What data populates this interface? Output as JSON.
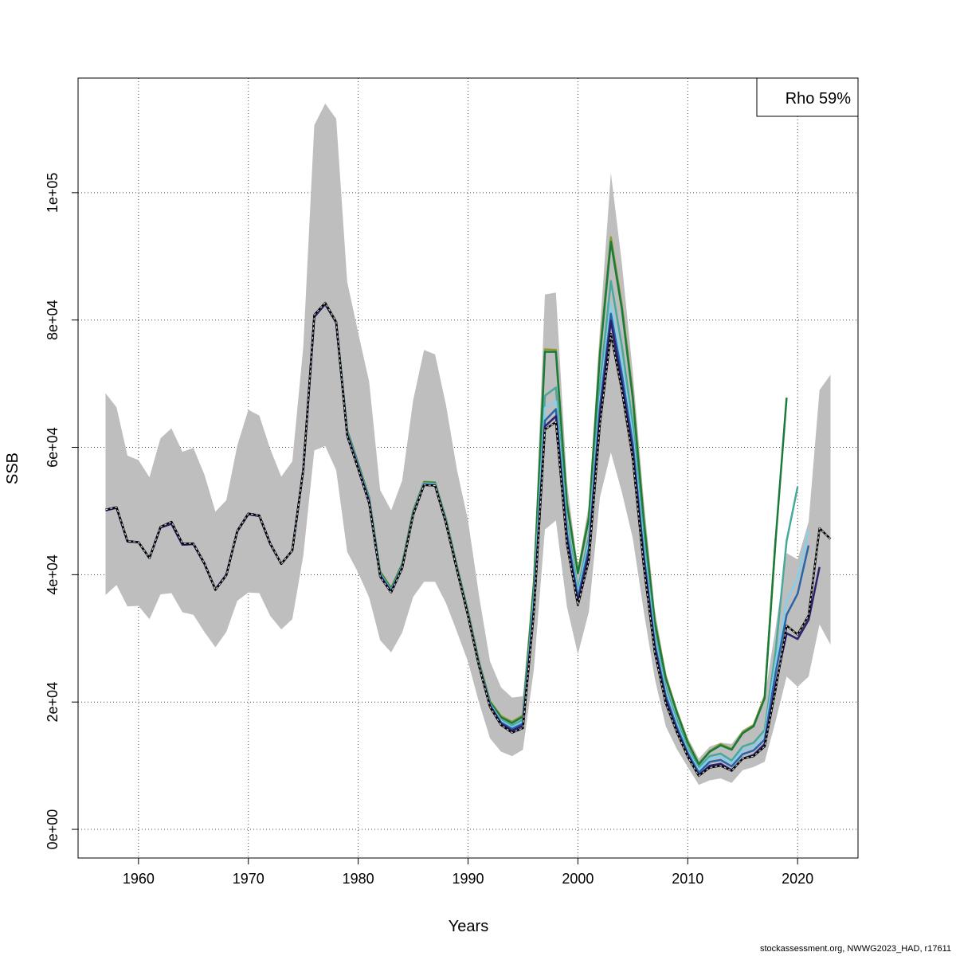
{
  "chart_data": {
    "type": "line",
    "title": "",
    "xlabel": "Years",
    "ylabel": "SSB",
    "xlim": [
      1954.5,
      2025.5
    ],
    "ylim": [
      -4500,
      118000
    ],
    "x_ticks": [
      1960,
      1970,
      1980,
      1990,
      2000,
      2010,
      2020
    ],
    "y_ticks": [
      {
        "value": 0,
        "label": "0e+00"
      },
      {
        "value": 20000,
        "label": "2e+04"
      },
      {
        "value": 40000,
        "label": "4e+04"
      },
      {
        "value": 60000,
        "label": "6e+04"
      },
      {
        "value": 80000,
        "label": "8e+04"
      },
      {
        "value": 100000,
        "label": "1e+05"
      }
    ],
    "grid": true,
    "legend": {
      "position": "top-right",
      "text": "Rho 59%"
    },
    "confidence_band": {
      "color": "#bebebe",
      "x": [
        1957,
        1958,
        1959,
        1960,
        1961,
        1962,
        1963,
        1964,
        1965,
        1966,
        1967,
        1968,
        1969,
        1970,
        1971,
        1972,
        1973,
        1974,
        1975,
        1976,
        1977,
        1978,
        1979,
        1980,
        1981,
        1982,
        1983,
        1984,
        1985,
        1986,
        1987,
        1988,
        1989,
        1990,
        1991,
        1992,
        1993,
        1994,
        1995,
        1996,
        1997,
        1998,
        1999,
        2000,
        2001,
        2002,
        2003,
        2004,
        2005,
        2006,
        2007,
        2008,
        2009,
        2010,
        2011,
        2012,
        2013,
        2014,
        2015,
        2016,
        2017,
        2018,
        2019,
        2020,
        2021,
        2022,
        2023
      ],
      "upper": [
        68500,
        66300,
        58700,
        58000,
        55300,
        61400,
        63000,
        59300,
        59900,
        55700,
        49900,
        51700,
        60300,
        65900,
        65000,
        59700,
        55400,
        57800,
        75800,
        110600,
        114000,
        111600,
        86000,
        78000,
        70300,
        53300,
        50100,
        54800,
        67400,
        75300,
        74600,
        66600,
        56400,
        48500,
        36700,
        26400,
        22300,
        20700,
        20900,
        40700,
        84000,
        84300,
        54700,
        40900,
        51100,
        78600,
        103100,
        89000,
        71800,
        51700,
        34600,
        24600,
        19000,
        14400,
        11100,
        13000,
        13600,
        13400,
        15600,
        16600,
        20800,
        31700,
        43400,
        42400,
        48300,
        69000,
        71400
      ],
      "lower": [
        36800,
        38400,
        35000,
        35100,
        33000,
        36900,
        37100,
        34100,
        33700,
        31000,
        28600,
        31000,
        35900,
        37200,
        37100,
        33500,
        31400,
        33000,
        43000,
        59500,
        60200,
        56400,
        43600,
        40300,
        36400,
        29700,
        27800,
        30900,
        36500,
        38900,
        38900,
        35500,
        31000,
        26300,
        19900,
        14300,
        12200,
        11500,
        12500,
        25200,
        47100,
        48500,
        35000,
        27500,
        34200,
        52100,
        59200,
        53000,
        45700,
        34200,
        23700,
        16200,
        12600,
        9800,
        7000,
        7700,
        8000,
        7300,
        9300,
        9800,
        10600,
        17000,
        24000,
        22400,
        24000,
        32200,
        29000
      ]
    },
    "series": [
      {
        "color": "#000000",
        "dashed": true,
        "x": [
          1957,
          1958,
          1959,
          1960,
          1961,
          1962,
          1963,
          1964,
          1965,
          1966,
          1967,
          1968,
          1969,
          1970,
          1971,
          1972,
          1973,
          1974,
          1975,
          1976,
          1977,
          1978,
          1979,
          1980,
          1981,
          1982,
          1983,
          1984,
          1985,
          1986,
          1987,
          1988,
          1989,
          1990,
          1991,
          1992,
          1993,
          1994,
          1995,
          1996,
          1997,
          1998,
          1999,
          2000,
          2001,
          2002,
          2003,
          2004,
          2005,
          2006,
          2007,
          2008,
          2009,
          2010,
          2011,
          2012,
          2013,
          2014,
          2015,
          2016,
          2017,
          2018,
          2019,
          2020,
          2021,
          2022,
          2023
        ],
        "y": [
          50200,
          50600,
          45300,
          45100,
          42600,
          47500,
          48300,
          44900,
          44900,
          41800,
          37600,
          39900,
          46900,
          49600,
          49300,
          44900,
          41700,
          43800,
          56500,
          80800,
          82700,
          79700,
          61800,
          56600,
          51200,
          39700,
          37200,
          41000,
          49400,
          54100,
          54000,
          48000,
          40700,
          33500,
          25600,
          19200,
          16400,
          15200,
          15900,
          34100,
          62800,
          64000,
          44800,
          35200,
          42300,
          63600,
          77800,
          69000,
          58200,
          41300,
          27800,
          19800,
          15300,
          11400,
          8400,
          9700,
          10000,
          9200,
          11100,
          11500,
          13000,
          22000,
          32000,
          30600,
          33600,
          47300,
          45600
        ]
      },
      {
        "color": "#2d1e6e",
        "x": [
          1957,
          1958,
          1959,
          1960,
          1961,
          1962,
          1963,
          1964,
          1965,
          1966,
          1967,
          1968,
          1969,
          1970,
          1971,
          1972,
          1973,
          1974,
          1975,
          1976,
          1977,
          1978,
          1979,
          1980,
          1981,
          1982,
          1983,
          1984,
          1985,
          1986,
          1987,
          1988,
          1989,
          1990,
          1991,
          1992,
          1993,
          1994,
          1995,
          1996,
          1997,
          1998,
          1999,
          2000,
          2001,
          2002,
          2003,
          2004,
          2005,
          2006,
          2007,
          2008,
          2009,
          2010,
          2011,
          2012,
          2013,
          2014,
          2015,
          2016,
          2017,
          2018,
          2019,
          2020,
          2021,
          2022
        ],
        "y": [
          50100,
          50500,
          45200,
          45100,
          42600,
          47400,
          48000,
          44700,
          44800,
          41700,
          37700,
          40000,
          46800,
          49500,
          49200,
          44800,
          41700,
          43800,
          56500,
          80500,
          82500,
          79600,
          62000,
          56800,
          51400,
          39800,
          37300,
          41100,
          49400,
          54100,
          54000,
          48100,
          40700,
          33600,
          25700,
          19400,
          16600,
          15500,
          16300,
          34600,
          63300,
          64900,
          45700,
          35700,
          43300,
          65000,
          79900,
          70200,
          59400,
          42200,
          28500,
          20400,
          15600,
          11600,
          8500,
          10000,
          10300,
          9300,
          11100,
          11700,
          13400,
          22700,
          30800,
          29900,
          32900,
          41200
        ]
      },
      {
        "color": "#2a64a8",
        "x": [
          1957,
          1958,
          1959,
          1960,
          1961,
          1962,
          1963,
          1964,
          1965,
          1966,
          1967,
          1968,
          1969,
          1970,
          1971,
          1972,
          1973,
          1974,
          1975,
          1976,
          1977,
          1978,
          1979,
          1980,
          1981,
          1982,
          1983,
          1984,
          1985,
          1986,
          1987,
          1988,
          1989,
          1990,
          1991,
          1992,
          1993,
          1994,
          1995,
          1996,
          1997,
          1998,
          1999,
          2000,
          2001,
          2002,
          2003,
          2004,
          2005,
          2006,
          2007,
          2008,
          2009,
          2010,
          2011,
          2012,
          2013,
          2014,
          2015,
          2016,
          2017,
          2018,
          2019,
          2020,
          2021
        ],
        "y": [
          50100,
          50500,
          45200,
          45100,
          42600,
          47400,
          48000,
          44700,
          44800,
          41700,
          37700,
          40000,
          46800,
          49500,
          49200,
          44800,
          41700,
          43800,
          56500,
          80500,
          82500,
          79600,
          62200,
          57000,
          51600,
          40000,
          37400,
          41200,
          49500,
          54200,
          54100,
          48200,
          40800,
          33700,
          25800,
          19500,
          16800,
          15800,
          16600,
          35200,
          64200,
          66000,
          46600,
          36400,
          44200,
          66300,
          81000,
          71600,
          60600,
          43200,
          29200,
          21000,
          16100,
          12000,
          8900,
          10600,
          10900,
          9900,
          11800,
          12400,
          14100,
          24600,
          33700,
          37000,
          44600
        ]
      },
      {
        "color": "#87ceeb",
        "x": [
          1957,
          1958,
          1959,
          1960,
          1961,
          1962,
          1963,
          1964,
          1965,
          1966,
          1967,
          1968,
          1969,
          1970,
          1971,
          1972,
          1973,
          1974,
          1975,
          1976,
          1977,
          1978,
          1979,
          1980,
          1981,
          1982,
          1983,
          1984,
          1985,
          1986,
          1987,
          1988,
          1989,
          1990,
          1991,
          1992,
          1993,
          1994,
          1995,
          1996,
          1997,
          1998,
          1999,
          2000,
          2001,
          2002,
          2003,
          2004,
          2005,
          2006,
          2007,
          2008,
          2009,
          2010,
          2011,
          2012,
          2013,
          2014,
          2015,
          2016,
          2017,
          2018,
          2019,
          2020,
          2021
        ],
        "y": [
          50100,
          50500,
          45200,
          45100,
          42600,
          47400,
          48000,
          44700,
          44800,
          41700,
          37700,
          40000,
          46800,
          49500,
          49200,
          44800,
          41700,
          43800,
          56500,
          80500,
          82500,
          79600,
          62300,
          57100,
          51700,
          40100,
          37500,
          41300,
          49600,
          54300,
          54200,
          48300,
          40900,
          33800,
          25900,
          19600,
          17000,
          16000,
          16900,
          36000,
          66200,
          67200,
          47300,
          37000,
          45000,
          67500,
          82600,
          73200,
          61800,
          44200,
          29900,
          21600,
          16600,
          12300,
          9300,
          11100,
          11400,
          10400,
          12400,
          13000,
          14800,
          26200,
          35800,
          39500,
          46900
        ]
      },
      {
        "color": "#48a89a",
        "x": [
          1957,
          1958,
          1959,
          1960,
          1961,
          1962,
          1963,
          1964,
          1965,
          1966,
          1967,
          1968,
          1969,
          1970,
          1971,
          1972,
          1973,
          1974,
          1975,
          1976,
          1977,
          1978,
          1979,
          1980,
          1981,
          1982,
          1983,
          1984,
          1985,
          1986,
          1987,
          1988,
          1989,
          1990,
          1991,
          1992,
          1993,
          1994,
          1995,
          1996,
          1997,
          1998,
          1999,
          2000,
          2001,
          2002,
          2003,
          2004,
          2005,
          2006,
          2007,
          2008,
          2009,
          2010,
          2011,
          2012,
          2013,
          2014,
          2015,
          2016,
          2017,
          2018,
          2019,
          2020
        ],
        "y": [
          50100,
          50500,
          45200,
          45100,
          42600,
          47400,
          48000,
          44700,
          44800,
          41700,
          37700,
          40000,
          46800,
          49500,
          49200,
          44800,
          41700,
          43800,
          56500,
          80500,
          82500,
          79600,
          62400,
          57200,
          51800,
          40200,
          37600,
          41400,
          49700,
          54400,
          54300,
          48400,
          41000,
          33900,
          26000,
          19700,
          17200,
          16300,
          17200,
          36800,
          68100,
          69400,
          48300,
          37700,
          46000,
          69700,
          86100,
          76000,
          63600,
          45500,
          30600,
          22300,
          17200,
          12700,
          9700,
          11500,
          11900,
          10800,
          13000,
          13600,
          15600,
          28000,
          45300,
          53800
        ]
      },
      {
        "color": "#1a7a3a",
        "x": [
          1957,
          1958,
          1959,
          1960,
          1961,
          1962,
          1963,
          1964,
          1965,
          1966,
          1967,
          1968,
          1969,
          1970,
          1971,
          1972,
          1973,
          1974,
          1975,
          1976,
          1977,
          1978,
          1979,
          1980,
          1981,
          1982,
          1983,
          1984,
          1985,
          1986,
          1987,
          1988,
          1989,
          1990,
          1991,
          1992,
          1993,
          1994,
          1995,
          1996,
          1997,
          1998,
          1999,
          2000,
          2001,
          2002,
          2003,
          2004,
          2005,
          2006,
          2007,
          2008,
          2009,
          2010,
          2011,
          2012,
          2013,
          2014,
          2015,
          2016,
          2017,
          2018,
          2019
        ],
        "y": [
          50100,
          50500,
          45200,
          45100,
          42600,
          47400,
          48000,
          44700,
          44800,
          41700,
          37700,
          40000,
          46800,
          49500,
          49200,
          44800,
          41700,
          43800,
          56500,
          80500,
          82500,
          79600,
          62600,
          57400,
          52000,
          40400,
          37800,
          41600,
          49900,
          54500,
          54400,
          48600,
          41200,
          34100,
          26200,
          20000,
          17600,
          16700,
          17700,
          38500,
          75000,
          75000,
          51200,
          40200,
          48800,
          74400,
          92300,
          81800,
          67700,
          48400,
          32500,
          23700,
          18400,
          13600,
          10200,
          12200,
          13200,
          12500,
          15100,
          16200,
          20600,
          45500,
          67800
        ]
      },
      {
        "color": "#8a9a2c",
        "x": [
          1957,
          1958,
          1959,
          1960,
          1961,
          1962,
          1963,
          1964,
          1965,
          1966,
          1967,
          1968,
          1969,
          1970,
          1971,
          1972,
          1973,
          1974,
          1975,
          1976,
          1977,
          1978,
          1979,
          1980,
          1981,
          1982,
          1983,
          1984,
          1985,
          1986,
          1987,
          1988,
          1989,
          1990,
          1991,
          1992,
          1993,
          1994,
          1995,
          1996,
          1997,
          1998,
          1999,
          2000,
          2001,
          2002,
          2003,
          2004,
          2005,
          2006,
          2007,
          2008,
          2009,
          2010,
          2011,
          2012,
          2013,
          2014,
          2015,
          2016,
          2017,
          2018
        ],
        "y": [
          50100,
          50500,
          45200,
          45100,
          42600,
          47400,
          48000,
          44700,
          44800,
          41700,
          37700,
          40000,
          46800,
          49500,
          49200,
          44800,
          41700,
          43800,
          56500,
          80500,
          82500,
          79600,
          62700,
          57500,
          52100,
          40500,
          37900,
          41700,
          50000,
          54600,
          54500,
          48700,
          41300,
          34200,
          26300,
          20100,
          17800,
          16900,
          17900,
          38900,
          75400,
          75300,
          51500,
          40500,
          49200,
          75000,
          93000,
          82400,
          68300,
          48800,
          32800,
          24000,
          18600,
          13800,
          10300,
          12300,
          13400,
          12600,
          15300,
          16400,
          20900,
          45700
        ]
      }
    ]
  },
  "footer_text": "stockassessment.org, NWWG2023_HAD, r17611"
}
